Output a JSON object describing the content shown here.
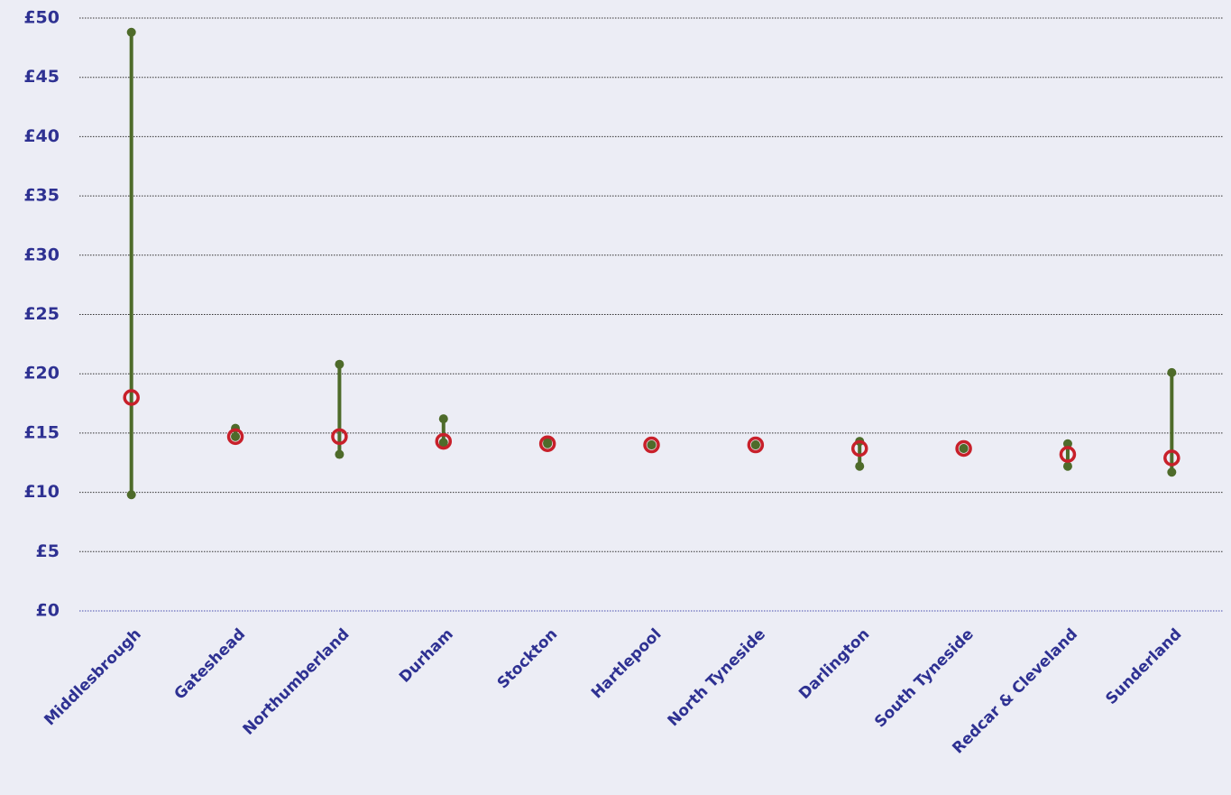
{
  "chart_data": {
    "type": "range",
    "categories": [
      "Middlesbrough",
      "Gateshead",
      "Northumberland",
      "Durham",
      "Stockton",
      "Hartlepool",
      "North Tyneside",
      "Darlington",
      "South Tyneside",
      "Redcar & Cleveland",
      "Sunderland"
    ],
    "values": [
      18.0,
      14.7,
      14.7,
      14.3,
      14.1,
      14.0,
      14.0,
      13.7,
      13.7,
      13.2,
      12.9
    ],
    "low": [
      9.8,
      14.7,
      13.2,
      14.2,
      14.1,
      14.0,
      14.0,
      12.2,
      13.7,
      12.2,
      11.7
    ],
    "high": [
      48.8,
      15.4,
      20.8,
      16.2,
      14.2,
      14.0,
      14.0,
      14.3,
      13.7,
      14.1,
      20.1
    ],
    "color": "#c8202a",
    "range_color": "#4e6b2a",
    "ylim": [
      0,
      50
    ],
    "yticks": [
      {
        "value": 0,
        "label": "£0"
      },
      {
        "value": 5,
        "label": "£5"
      },
      {
        "value": 10,
        "label": "£10"
      },
      {
        "value": 15,
        "label": "£15"
      },
      {
        "value": 20,
        "label": "£20"
      },
      {
        "value": 25,
        "label": "£25"
      },
      {
        "value": 30,
        "label": "£30"
      },
      {
        "value": 35,
        "label": "£35"
      },
      {
        "value": 40,
        "label": "£40"
      },
      {
        "value": 45,
        "label": "£45"
      },
      {
        "value": 50,
        "label": "£50"
      }
    ],
    "grid": true
  }
}
